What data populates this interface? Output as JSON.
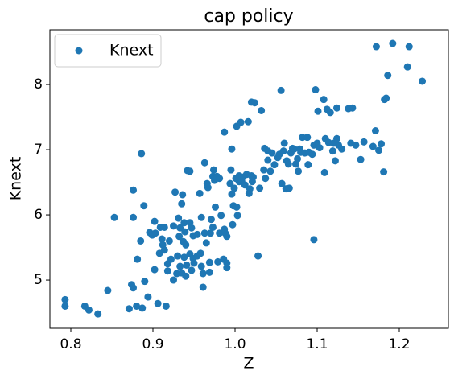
{
  "chart_data": {
    "type": "scatter",
    "title": "cap policy",
    "xlabel": "Z",
    "ylabel": "Knext",
    "xlim": [
      0.7745,
      1.2598
    ],
    "ylim": [
      4.26,
      8.84
    ],
    "xticks": [
      0.8,
      0.9,
      {
        "value": 1,
        "label": "1.0"
      },
      1.1,
      1.2
    ],
    "yticks": [
      5,
      6,
      7,
      8
    ],
    "legend": "upper left",
    "x": [
      0.793,
      0.793,
      0.817,
      0.822,
      0.833,
      0.845,
      0.853,
      0.871,
      0.874,
      0.876,
      0.876,
      0.876,
      0.88,
      0.881,
      0.885,
      0.886,
      0.887,
      0.889,
      0.89,
      0.894,
      0.896,
      0.899,
      0.902,
      0.902,
      0.903,
      0.906,
      0.908,
      0.909,
      0.911,
      0.912,
      0.914,
      0.914,
      0.916,
      0.918,
      0.918,
      0.92,
      0.922,
      0.925,
      0.925,
      0.927,
      0.929,
      0.93,
      0.931,
      0.932,
      0.933,
      0.933,
      0.935,
      0.935,
      0.936,
      0.937,
      0.938,
      0.938,
      0.939,
      0.94,
      0.94,
      0.941,
      0.942,
      0.945,
      0.945,
      0.945,
      0.947,
      0.947,
      0.949,
      0.949,
      0.95,
      0.954,
      0.954,
      0.958,
      0.957,
      0.959,
      0.959,
      0.961,
      0.961,
      0.963,
      0.963,
      0.965,
      0.966,
      0.967,
      0.969,
      0.969,
      0.97,
      0.971,
      0.973,
      0.973,
      0.974,
      0.975,
      0.976,
      0.978,
      0.979,
      0.981,
      0.981,
      0.983,
      0.986,
      0.987,
      0.987,
      0.988,
      0.99,
      0.99,
      0.99,
      0.994,
      0.995,
      0.996,
      0.996,
      0.997,
      0.998,
      0.999,
      1.001,
      1.002,
      1.002,
      1.003,
      1.005,
      1.005,
      1.007,
      1.008,
      1.009,
      1.012,
      1.014,
      1.016,
      1.017,
      1.018,
      1.028,
      1.02,
      1.02,
      1.021,
      1.022,
      1.024,
      1.032,
      1.03,
      1.035,
      1.036,
      1.037,
      1.04,
      1.04,
      1.043,
      1.045,
      1.048,
      1.052,
      1.054,
      1.056,
      1.057,
      1.059,
      1.06,
      1.062,
      1.063,
      1.065,
      1.066,
      1.068,
      1.07,
      1.072,
      1.074,
      1.076,
      1.077,
      1.079,
      1.08,
      1.082,
      1.085,
      1.088,
      1.089,
      1.09,
      1.094,
      1.096,
      1.098,
      1.096,
      1.1,
      1.101,
      1.103,
      1.108,
      1.109,
      1.11,
      1.112,
      1.114,
      1.116,
      1.119,
      1.12,
      1.122,
      1.124,
      1.124,
      1.126,
      1.13,
      1.141,
      1.143,
      1.147,
      1.153,
      1.157,
      1.138,
      1.168,
      1.171,
      1.172,
      1.175,
      1.178,
      1.181,
      1.182,
      1.184,
      1.186,
      1.192,
      1.21,
      1.212,
      1.228
    ],
    "series": [
      {
        "name": "Knext",
        "color": "#1f77b4",
        "values": [
          4.7,
          4.6,
          4.6,
          4.54,
          4.48,
          4.84,
          5.96,
          4.56,
          4.93,
          4.88,
          6.38,
          5.96,
          4.6,
          5.32,
          5.6,
          6.94,
          4.57,
          6.14,
          4.98,
          4.74,
          5.73,
          5.69,
          5.9,
          5.16,
          5.72,
          4.64,
          5.41,
          5.81,
          5.63,
          5.54,
          5.46,
          5.81,
          4.6,
          5.14,
          5.25,
          5.6,
          5.32,
          5.0,
          5.83,
          6.35,
          5.1,
          5.37,
          5.95,
          5.67,
          5.21,
          5.8,
          5.11,
          6.17,
          6.31,
          5.59,
          5.35,
          5.88,
          5.74,
          5.06,
          5.54,
          5.23,
          6.68,
          6.67,
          5.88,
          5.4,
          5.8,
          5.15,
          5.33,
          5.68,
          5.26,
          5.37,
          5.7,
          5.41,
          6.33,
          5.96,
          5.21,
          5.1,
          4.89,
          5.72,
          6.8,
          5.57,
          6.48,
          6.42,
          5.27,
          5.12,
          5.72,
          5.93,
          6.59,
          5.81,
          6.69,
          6.53,
          6.12,
          6.59,
          5.28,
          6.56,
          5.72,
          5.99,
          5.32,
          7.27,
          5.78,
          5.72,
          5.67,
          5.19,
          5.26,
          6.48,
          6.69,
          7.01,
          6.32,
          5.85,
          6.14,
          6.41,
          6.56,
          7.36,
          6.12,
          5.99,
          6.51,
          6.6,
          7.42,
          6.53,
          6.58,
          6.46,
          6.62,
          7.43,
          6.33,
          6.4,
          5.37,
          7.73,
          6.6,
          6.51,
          6.58,
          7.72,
          7.6,
          6.41,
          6.69,
          7.02,
          6.56,
          6.84,
          6.98,
          6.67,
          6.95,
          6.77,
          6.88,
          6.93,
          7.91,
          6.48,
          6.98,
          7.1,
          6.4,
          6.83,
          6.78,
          6.41,
          6.95,
          7.02,
          7.01,
          6.78,
          6.86,
          6.67,
          7.01,
          6.96,
          7.19,
          6.95,
          7.19,
          6.77,
          6.96,
          6.93,
          7.07,
          7.92,
          5.62,
          7.1,
          7.59,
          7.03,
          7.77,
          6.65,
          7.17,
          7.62,
          7.11,
          7.57,
          6.98,
          7.1,
          6.83,
          7.17,
          7.64,
          7.07,
          7.01,
          7.1,
          7.64,
          7.07,
          6.85,
          7.12,
          7.63,
          7.05,
          7.29,
          8.58,
          6.99,
          7.09,
          6.66,
          7.77,
          7.79,
          8.14,
          8.63,
          8.27,
          8.58,
          8.05
        ]
      }
    ]
  }
}
